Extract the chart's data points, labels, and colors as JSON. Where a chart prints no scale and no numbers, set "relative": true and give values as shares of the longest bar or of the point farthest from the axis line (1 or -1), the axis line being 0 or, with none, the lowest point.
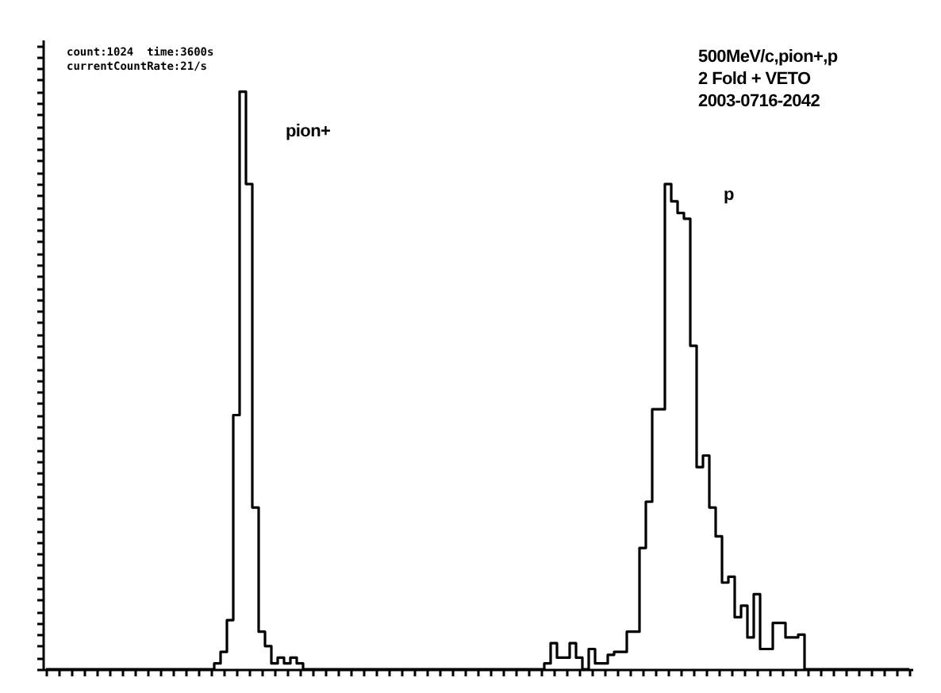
{
  "chart_data": {
    "type": "step",
    "relative": true,
    "tick_labels": false,
    "grid": false,
    "legend": false,
    "categories": [
      null,
      null,
      null,
      null,
      null,
      null,
      null,
      null,
      null,
      null,
      null,
      null,
      null,
      null,
      null,
      null,
      null,
      null,
      null,
      null,
      null,
      null,
      null,
      null,
      null,
      null,
      null,
      null,
      null,
      null,
      null,
      null,
      null,
      null,
      null,
      null,
      null,
      null,
      null,
      null,
      null,
      null,
      null,
      null,
      null,
      null,
      null,
      null,
      null,
      null,
      null,
      null,
      null,
      null,
      null,
      null,
      null,
      null,
      null,
      null,
      null,
      null,
      null,
      null,
      null,
      null,
      null,
      null,
      null,
      null,
      null,
      null,
      null,
      null,
      null,
      null,
      null,
      null,
      null,
      null,
      null,
      null,
      null,
      null,
      null,
      null,
      null,
      null,
      null,
      null,
      null,
      null,
      null,
      null,
      null,
      null,
      null,
      null,
      null,
      null,
      null,
      null,
      null,
      null,
      null,
      null,
      null,
      null,
      null,
      null,
      null,
      null,
      null,
      null,
      null,
      null,
      null,
      null,
      null,
      null,
      null,
      null,
      null,
      null,
      null,
      null,
      null,
      null,
      null,
      null,
      null,
      null,
      null,
      null,
      null,
      null,
      null
    ],
    "series": [
      {
        "color": "#000000",
        "values": [
          0,
          0,
          0,
          0,
          0,
          0,
          0,
          0,
          0,
          0,
          0,
          0,
          0,
          0,
          0,
          0,
          0,
          0,
          0,
          0,
          0,
          0,
          0,
          0,
          0,
          0,
          0,
          0.01,
          0.03,
          0.085,
          0.44,
          1,
          0.84,
          0.28,
          0.065,
          0.04,
          0.01,
          0.02,
          0.01,
          0.02,
          0.01,
          0,
          0,
          0,
          0,
          0,
          0,
          0,
          0,
          0,
          0,
          0,
          0,
          0,
          0,
          0,
          0,
          0,
          0,
          0,
          0,
          0,
          0,
          0,
          0,
          0,
          0,
          0,
          0,
          0,
          0,
          0,
          0,
          0,
          0,
          0,
          0,
          0,
          0,
          0.01,
          0.045,
          0.02,
          0.02,
          0.045,
          0.02,
          0,
          0.035,
          0.01,
          0.01,
          0.025,
          0.03,
          0.03,
          0.065,
          0.065,
          0.21,
          0.29,
          0.45,
          0.45,
          0.84,
          0.81,
          0.79,
          0.78,
          0.56,
          0.35,
          0.37,
          0.28,
          0.23,
          0.15,
          0.16,
          0.09,
          0.11,
          0.055,
          0.13,
          0.035,
          0.035,
          0.08,
          0.08,
          0.055,
          0.055,
          0.06,
          0,
          0,
          0,
          0,
          0,
          0,
          0,
          0,
          0,
          0,
          0,
          0,
          0,
          0,
          0,
          0,
          0
        ]
      }
    ],
    "annotations": [
      "count:1024  time:3600s",
      "currentCountRate:21/s",
      "500MeV/c,pion+,p",
      "2 Fold + VETO",
      "2003-0716-2042",
      "pion+",
      "p"
    ]
  }
}
